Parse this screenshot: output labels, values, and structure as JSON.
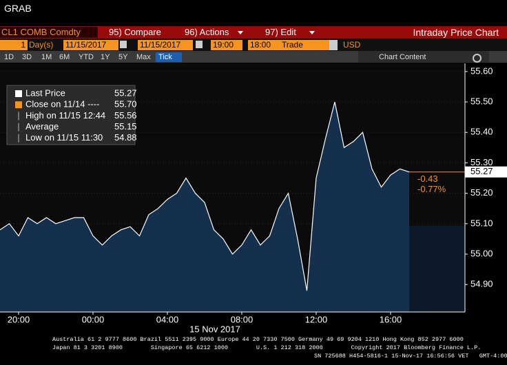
{
  "window": {
    "title": "GRAB"
  },
  "toolbar": {
    "security": "CL1 COMB Comdty",
    "compare": "95) Compare",
    "actions": "96) Actions",
    "edit": "97) Edit",
    "view": "Intraday Price Chart"
  },
  "settings": {
    "period": "1",
    "unit": "Day(s)",
    "start": "11/15/2017",
    "end": "11/15/2017",
    "from": "19:00",
    "to": "18:00",
    "mode": "Trade",
    "currency": "USD"
  },
  "tabs": [
    "1D",
    "3D",
    "1M",
    "6M",
    "YTD",
    "1Y",
    "5Y",
    "Max",
    "Tick"
  ],
  "chart_content": "Chart Content",
  "chart_data": {
    "type": "line",
    "xlabel": "15 Nov 2017",
    "categories": [
      null,
      null,
      "20:00",
      null,
      null,
      null,
      null,
      null,
      null,
      null,
      "00:00",
      null,
      null,
      null,
      null,
      null,
      null,
      null,
      "04:00",
      null,
      null,
      null,
      null,
      null,
      null,
      null,
      "08:00",
      null,
      null,
      null,
      null,
      null,
      null,
      null,
      "12:00",
      null,
      null,
      null,
      null,
      null,
      null,
      null,
      "16:00",
      null,
      null,
      null,
      null,
      null,
      null,
      null,
      null
    ],
    "series": [
      {
        "name": "Last Price",
        "color": "#ffffff",
        "fill": "#14304d",
        "values": [
          55.08,
          55.1,
          55.06,
          55.12,
          55.1,
          55.12,
          55.1,
          55.11,
          55.12,
          55.12,
          55.06,
          55.03,
          55.06,
          55.08,
          55.09,
          55.06,
          55.13,
          55.15,
          55.18,
          55.2,
          55.25,
          55.2,
          55.17,
          55.08,
          55.05,
          55.0,
          55.03,
          55.08,
          55.03,
          55.06,
          55.15,
          55.2,
          55.05,
          54.88,
          55.25,
          55.38,
          55.5,
          55.35,
          55.37,
          55.4,
          55.28,
          55.22,
          55.26,
          55.28,
          55.27,
          null,
          null,
          null,
          null,
          null,
          null
        ]
      }
    ],
    "ylim": [
      54.81,
      55.62
    ],
    "yticks": [
      {
        "value": 54.9,
        "label": "54.90"
      },
      {
        "value": 55.0,
        "label": "55.00"
      },
      {
        "value": 55.1,
        "label": "55.10"
      },
      {
        "value": 55.2,
        "label": "55.20"
      },
      {
        "value": 55.3,
        "label": "55.30"
      },
      {
        "value": 55.4,
        "label": "55.40"
      },
      {
        "value": 55.5,
        "label": "55.50"
      },
      {
        "value": 55.6,
        "label": "55.60"
      }
    ],
    "grid": true,
    "last_value": 55.27,
    "last_value_color": "#f7941d",
    "change": "-0.43",
    "change_pct": "-0.77%",
    "legend": [
      {
        "label": "Last Price",
        "value": "55.27"
      },
      {
        "label": "Close on 11/14 ----",
        "value": "55.70"
      },
      {
        "label": "High on 11/15 12:44",
        "value": "55.56"
      },
      {
        "label": "Average",
        "value": "55.15"
      },
      {
        "label": "Low on 11/15 11:30",
        "value": "54.88"
      }
    ]
  },
  "footer": [
    "Australia 61 2 9777 8600 Brazil 5511 2395 9000 Europe 44 20 7330 7500 Germany 49 69 9204 1210 Hong Kong 852 2977 6000",
    "Japan 81 3 3201 8900        Singapore 65 6212 1000        U.S. 1 212 318 2000        Copyright 2017 Bloomberg Finance L.P.",
    "SN 725688 H454-5816-1 15-Nov-17 16:56:56 VET   GMT-4:00"
  ]
}
